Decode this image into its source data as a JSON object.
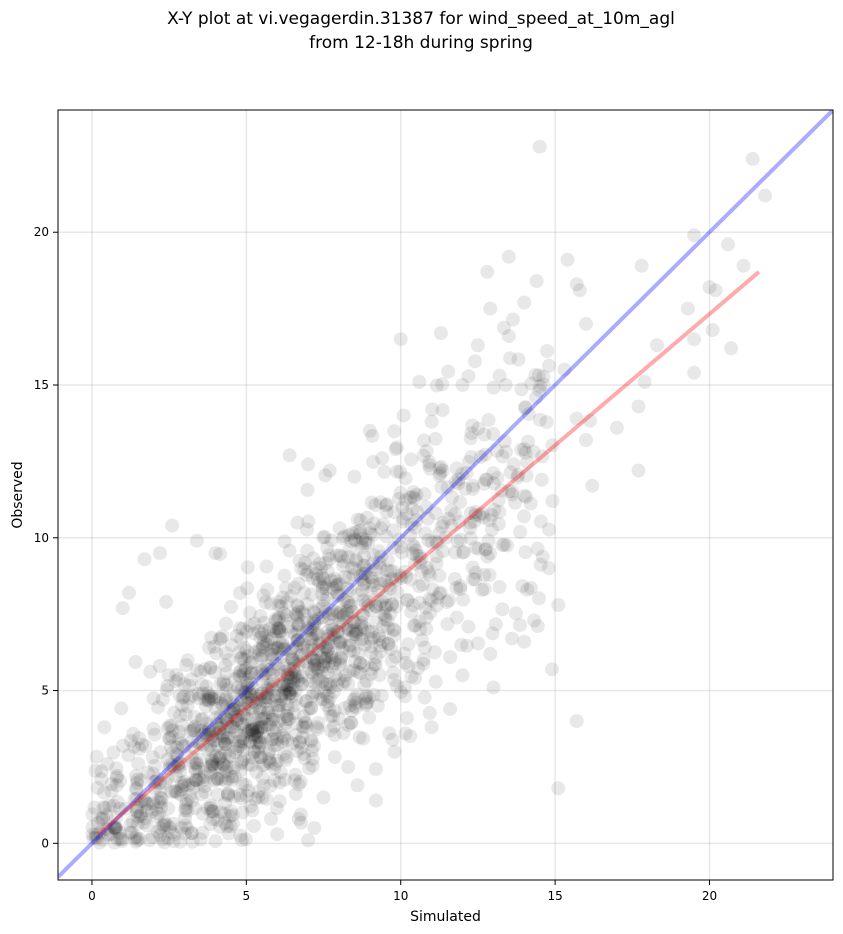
{
  "chart_data": {
    "type": "scatter",
    "title": "X-Y plot at vi.vegagerdin.31387 for wind_speed_at_10m_agl",
    "subtitle": "from 12-18h during spring",
    "xlabel": "Simulated",
    "ylabel": "Observed",
    "xlim": [
      -1.1,
      24.0
    ],
    "ylim": [
      -1.2,
      24.0
    ],
    "x_ticks": [
      0,
      5,
      10,
      15,
      20
    ],
    "y_ticks": [
      0,
      5,
      10,
      15,
      20
    ],
    "grid": true,
    "point_color": "#000000",
    "point_opacity": 0.09,
    "outlier_points": [
      {
        "x": 14.5,
        "y": 22.8
      },
      {
        "x": 21.4,
        "y": 22.4
      },
      {
        "x": 21.8,
        "y": 21.2
      },
      {
        "x": 19.5,
        "y": 19.9
      },
      {
        "x": 20.6,
        "y": 19.6
      },
      {
        "x": 15.4,
        "y": 19.1
      },
      {
        "x": 13.5,
        "y": 19.2
      },
      {
        "x": 17.8,
        "y": 18.9
      },
      {
        "x": 20.0,
        "y": 18.2
      },
      {
        "x": 20.2,
        "y": 18.1
      },
      {
        "x": 12.8,
        "y": 18.7
      },
      {
        "x": 14.4,
        "y": 18.4
      },
      {
        "x": 15.7,
        "y": 18.3
      },
      {
        "x": 15.8,
        "y": 18.1
      },
      {
        "x": 21.1,
        "y": 18.9
      },
      {
        "x": 19.3,
        "y": 17.5
      },
      {
        "x": 20.1,
        "y": 16.8
      },
      {
        "x": 19.5,
        "y": 16.5
      },
      {
        "x": 20.7,
        "y": 16.2
      },
      {
        "x": 18.3,
        "y": 16.3
      },
      {
        "x": 19.5,
        "y": 15.4
      },
      {
        "x": 17.9,
        "y": 15.1
      },
      {
        "x": 17.7,
        "y": 14.3
      },
      {
        "x": 17.0,
        "y": 13.6
      },
      {
        "x": 17.7,
        "y": 12.2
      },
      {
        "x": 15.7,
        "y": 13.9
      },
      {
        "x": 16.0,
        "y": 13.2
      },
      {
        "x": 16.2,
        "y": 11.7
      },
      {
        "x": 15.3,
        "y": 15.5
      },
      {
        "x": 16.0,
        "y": 17.0
      },
      {
        "x": 14.8,
        "y": 9.0
      },
      {
        "x": 14.1,
        "y": 8.3
      },
      {
        "x": 14.9,
        "y": 5.7
      },
      {
        "x": 15.7,
        "y": 4.0
      },
      {
        "x": 15.1,
        "y": 1.8
      },
      {
        "x": 15.1,
        "y": 7.8
      },
      {
        "x": 10.0,
        "y": 16.5
      },
      {
        "x": 11.3,
        "y": 16.7
      },
      {
        "x": 12.5,
        "y": 16.3
      },
      {
        "x": 12.9,
        "y": 17.5
      },
      {
        "x": 14.0,
        "y": 17.7
      },
      {
        "x": 13.5,
        "y": 16.6
      },
      {
        "x": 2.6,
        "y": 10.4
      },
      {
        "x": 1.7,
        "y": 9.3
      },
      {
        "x": 2.2,
        "y": 9.5
      },
      {
        "x": 3.4,
        "y": 9.9
      },
      {
        "x": 4.0,
        "y": 9.5
      },
      {
        "x": 1.2,
        "y": 8.2
      },
      {
        "x": 1.0,
        "y": 7.7
      },
      {
        "x": 2.4,
        "y": 7.9
      },
      {
        "x": 0.4,
        "y": 3.8
      },
      {
        "x": 0.5,
        "y": 2.6
      },
      {
        "x": 0.3,
        "y": 2.1
      },
      {
        "x": 0.8,
        "y": 1.9
      },
      {
        "x": 0.3,
        "y": 0.8
      },
      {
        "x": 0.6,
        "y": 0.3
      },
      {
        "x": 7.0,
        "y": 12.4
      },
      {
        "x": 7.7,
        "y": 12.2
      },
      {
        "x": 6.4,
        "y": 12.7
      },
      {
        "x": 9.0,
        "y": 13.5
      },
      {
        "x": 8.5,
        "y": 12.0
      },
      {
        "x": 10.6,
        "y": 15.1
      },
      {
        "x": 12.0,
        "y": 15.0
      },
      {
        "x": 13.2,
        "y": 15.3
      },
      {
        "x": 13.4,
        "y": 15.0
      },
      {
        "x": 11.0,
        "y": 13.8
      },
      {
        "x": 9.8,
        "y": 3.0
      },
      {
        "x": 10.2,
        "y": 4.1
      },
      {
        "x": 11.0,
        "y": 3.8
      },
      {
        "x": 11.6,
        "y": 4.4
      },
      {
        "x": 12.0,
        "y": 5.5
      },
      {
        "x": 13.0,
        "y": 5.1
      },
      {
        "x": 12.9,
        "y": 6.2
      },
      {
        "x": 13.6,
        "y": 6.7
      },
      {
        "x": 14.0,
        "y": 6.6
      },
      {
        "x": 9.2,
        "y": 1.4
      },
      {
        "x": 8.6,
        "y": 1.9
      },
      {
        "x": 7.5,
        "y": 1.5
      },
      {
        "x": 6.7,
        "y": 0.8
      },
      {
        "x": 7.2,
        "y": 0.5
      },
      {
        "x": 6.0,
        "y": 0.3
      },
      {
        "x": 5.8,
        "y": 0.8
      },
      {
        "x": 7.0,
        "y": 0.1
      },
      {
        "x": 8.3,
        "y": 2.5
      }
    ],
    "y_equals_x_line": {
      "x": [
        -1.1,
        24.0
      ],
      "y": [
        -1.1,
        24.0
      ],
      "color": "#0000ff",
      "opacity": 0.33
    },
    "fit_line": {
      "x": [
        0.2,
        21.6
      ],
      "y": [
        0.3,
        18.7
      ],
      "color": "#ff0000",
      "opacity": 0.33
    }
  }
}
